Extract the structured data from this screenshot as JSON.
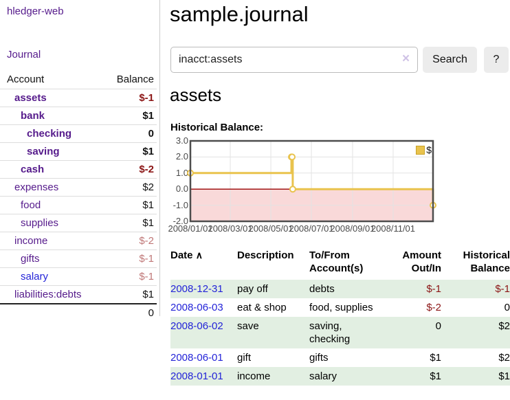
{
  "app": {
    "title": "hledger-web"
  },
  "sidebar": {
    "nav_journal": "Journal",
    "table": {
      "headers": {
        "account": "Account",
        "balance": "Balance"
      },
      "rows": [
        {
          "account": "assets",
          "balance": "$-1",
          "indent": 1,
          "bold": true,
          "balance_style": "neg-strong",
          "link_style": "purple"
        },
        {
          "account": "bank",
          "balance": "$1",
          "indent": 2,
          "bold": true,
          "balance_style": "normal",
          "link_style": "purple"
        },
        {
          "account": "checking",
          "balance": "0",
          "indent": 3,
          "bold": true,
          "balance_style": "normal",
          "link_style": "purple"
        },
        {
          "account": "saving",
          "balance": "$1",
          "indent": 3,
          "bold": true,
          "balance_style": "normal",
          "link_style": "purple"
        },
        {
          "account": "cash",
          "balance": "$-2",
          "indent": 2,
          "bold": true,
          "balance_style": "neg-strong",
          "link_style": "purple"
        },
        {
          "account": "expenses",
          "balance": "$2",
          "indent": 1,
          "bold": false,
          "balance_style": "normal",
          "link_style": "purple"
        },
        {
          "account": "food",
          "balance": "$1",
          "indent": 2,
          "bold": false,
          "balance_style": "normal",
          "link_style": "purple"
        },
        {
          "account": "supplies",
          "balance": "$1",
          "indent": 2,
          "bold": false,
          "balance_style": "normal",
          "link_style": "purple"
        },
        {
          "account": "income",
          "balance": "$-2",
          "indent": 1,
          "bold": false,
          "balance_style": "neg-muted",
          "link_style": "purple"
        },
        {
          "account": "gifts",
          "balance": "$-1",
          "indent": 2,
          "bold": false,
          "balance_style": "neg-muted",
          "link_style": "purple"
        },
        {
          "account": "salary",
          "balance": "$-1",
          "indent": 2,
          "bold": false,
          "balance_style": "neg-muted",
          "link_style": "blue"
        },
        {
          "account": "liabilities:debts",
          "balance": "$1",
          "indent": 1,
          "bold": false,
          "balance_style": "normal",
          "link_style": "purple"
        }
      ],
      "total": "0"
    }
  },
  "header": {
    "title": "sample.journal"
  },
  "search": {
    "value": "inacct:assets",
    "clear_icon": "×",
    "button": "Search",
    "help_button": "?"
  },
  "account_page": {
    "title": "assets",
    "chart_label": "Historical Balance:"
  },
  "chart_data": {
    "type": "line",
    "step": true,
    "title": "Historical Balance:",
    "series": [
      {
        "name": "$",
        "color": "#e9c34d",
        "points": [
          [
            "2008-01-01",
            1
          ],
          [
            "2008-06-01",
            2
          ],
          [
            "2008-06-02",
            2
          ],
          [
            "2008-06-03",
            0
          ],
          [
            "2008-12-31",
            -1
          ]
        ]
      }
    ],
    "xlim": [
      "2008-01-01",
      "2008-12-31"
    ],
    "ylim": [
      -2,
      3
    ],
    "y_ticks": [
      "3.0",
      "2.0",
      "1.0",
      "0.0",
      "-1.0",
      "-2.0"
    ],
    "x_ticks": [
      "2008/01/01",
      "2008/03/01",
      "2008/05/01",
      "2008/07/01",
      "2008/09/01",
      "2008/11/01"
    ],
    "grid": true,
    "negative_region_fill": "#f9d9d9",
    "zero_line_color": "#990000",
    "legend": {
      "label": "$",
      "position": "top-right"
    }
  },
  "register_table": {
    "headers": {
      "date": "Date",
      "sort_icon": "∧",
      "description": "Description",
      "accounts": "To/From Account(s)",
      "amount": "Amount Out/In",
      "balance": "Historical Balance"
    },
    "rows": [
      {
        "date": "2008-12-31",
        "description": "pay off",
        "accounts": "debts",
        "amount": "$-1",
        "amount_negative": true,
        "balance": "$-1",
        "balance_negative": true,
        "highlight": true
      },
      {
        "date": "2008-06-03",
        "description": "eat & shop",
        "accounts": "food, supplies",
        "amount": "$-2",
        "amount_negative": true,
        "balance": "0",
        "balance_negative": false,
        "highlight": false
      },
      {
        "date": "2008-06-02",
        "description": "save",
        "accounts": "saving, checking",
        "amount": "0",
        "amount_negative": false,
        "balance": "$2",
        "balance_negative": false,
        "highlight": true
      },
      {
        "date": "2008-06-01",
        "description": "gift",
        "accounts": "gifts",
        "amount": "$1",
        "amount_negative": false,
        "balance": "$2",
        "balance_negative": false,
        "highlight": false
      },
      {
        "date": "2008-01-01",
        "description": "income",
        "accounts": "salary",
        "amount": "$1",
        "amount_negative": false,
        "balance": "$1",
        "balance_negative": false,
        "highlight": true
      }
    ]
  },
  "colors": {
    "link_purple": "#551a8b",
    "link_blue": "#2323d8",
    "negative_strong": "#8b1515",
    "negative_muted": "#c07878",
    "row_highlight": "#e2efe2",
    "chart_line": "#e9c34d",
    "chart_negative_fill": "#f9d9d9",
    "chart_zero_line": "#990000"
  }
}
